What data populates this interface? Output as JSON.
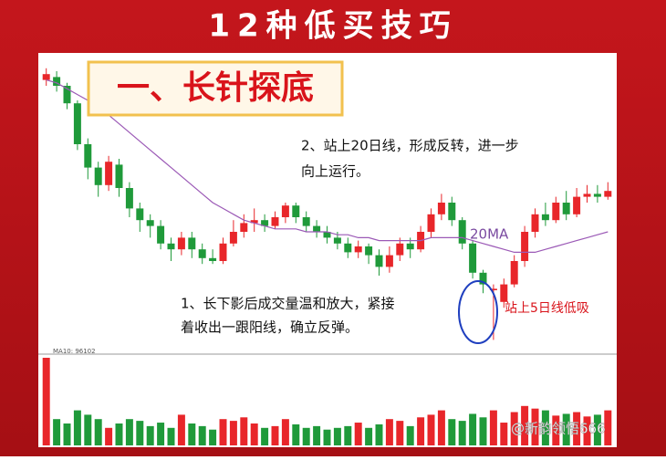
{
  "chart_data": {
    "type": "candlestick",
    "title": "12种低买技巧",
    "box_title": "一、长针探底",
    "note_top": [
      "2、站上20日线，形成反转，进一步",
      "向上运行。"
    ],
    "note_bottom": [
      "1、长下影后成交量温和放大，紧接",
      "着收出一跟阳线，确立反弹。"
    ],
    "ma_label": "20MA",
    "callout": "站上5日线低吸",
    "volume_legend": "MA10: 96102",
    "watermark": "@新韵领悟666",
    "up_color": "#e8262a",
    "down_color": "#1f9a3a",
    "ma_color": "#9b59b6",
    "ylim": [
      0,
      100
    ],
    "volume_ylim": [
      0,
      100
    ],
    "open": [
      92,
      93,
      90,
      84,
      70,
      62,
      56,
      63,
      55,
      48,
      44,
      42,
      36,
      34,
      38,
      34,
      31,
      30,
      36,
      40,
      43,
      44,
      42,
      45,
      49,
      45,
      42,
      40,
      38,
      36,
      33,
      35,
      32,
      28,
      32,
      36,
      34,
      40,
      46,
      50,
      44,
      36,
      26,
      20,
      16,
      22,
      30,
      40,
      46,
      44,
      50,
      46,
      52,
      53,
      52
    ],
    "close": [
      94,
      90,
      84,
      70,
      62,
      56,
      64,
      55,
      48,
      44,
      42,
      36,
      34,
      38,
      34,
      31,
      30,
      36,
      40,
      43,
      44,
      42,
      45,
      49,
      45,
      42,
      40,
      38,
      36,
      33,
      35,
      32,
      28,
      32,
      36,
      34,
      40,
      46,
      50,
      44,
      36,
      26,
      22,
      20.5,
      22,
      30,
      40,
      46,
      44,
      50,
      46,
      52,
      53,
      52,
      54
    ],
    "high": [
      96,
      95,
      91,
      85,
      72,
      64,
      66,
      65,
      57,
      50,
      46,
      44,
      38,
      40,
      40,
      36,
      34,
      38,
      44,
      46,
      48,
      46,
      47,
      50,
      50,
      47,
      44,
      42,
      40,
      38,
      37,
      36,
      34,
      35,
      38,
      38,
      42,
      48,
      53,
      52,
      45,
      37,
      27,
      22,
      24,
      32,
      42,
      48,
      50,
      52,
      54,
      55,
      56,
      56,
      57
    ],
    "low": [
      90,
      88,
      82,
      68,
      58,
      52,
      54,
      52,
      45,
      40,
      38,
      34,
      30,
      32,
      31,
      29,
      29,
      29,
      35,
      38,
      40,
      40,
      41,
      43,
      43,
      40,
      38,
      36,
      34,
      31,
      31,
      29,
      25,
      26,
      30,
      31,
      33,
      38,
      44,
      42,
      34,
      24,
      19,
      3,
      14,
      21,
      28,
      38,
      42,
      43,
      44,
      45,
      50,
      50,
      51
    ],
    "ma20": [
      92,
      91,
      89,
      87,
      85,
      82,
      80,
      77,
      74,
      71,
      68,
      65,
      62,
      59,
      56,
      53,
      50,
      48,
      46,
      44,
      43,
      42,
      41,
      41,
      41,
      40,
      40,
      40,
      39,
      39,
      38,
      38,
      37,
      37,
      37,
      37,
      37,
      38,
      38,
      38,
      38,
      37,
      36,
      35,
      34,
      33,
      33,
      33,
      34,
      35,
      36,
      37,
      38,
      39,
      40
    ],
    "volume": [
      100,
      30,
      25,
      40,
      35,
      30,
      20,
      25,
      30,
      28,
      22,
      26,
      20,
      35,
      25,
      22,
      18,
      30,
      28,
      32,
      25,
      20,
      22,
      30,
      24,
      20,
      22,
      18,
      20,
      22,
      26,
      20,
      24,
      30,
      28,
      22,
      32,
      35,
      40,
      30,
      28,
      36,
      32,
      40,
      26,
      38,
      45,
      42,
      40,
      34,
      36,
      38,
      33,
      35,
      40
    ]
  }
}
